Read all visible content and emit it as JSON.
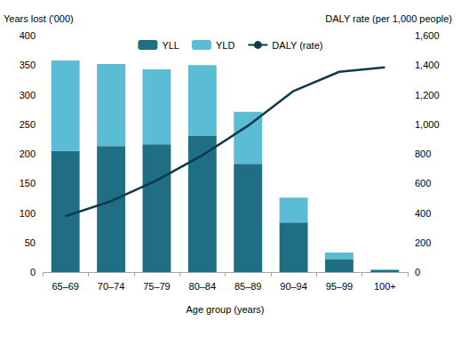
{
  "chart_data": {
    "type": "bar",
    "x_label": "Age group (years)",
    "y_label": "Years lost ('000)",
    "y2_label": "DALY rate (per 1,000 people)",
    "categories": [
      "65–69",
      "70–74",
      "75–79",
      "80–84",
      "85–89",
      "90–94",
      "95–99",
      "100+"
    ],
    "series": [
      {
        "name": "YLL",
        "type": "bar",
        "color": "#1f6e84",
        "values": [
          205,
          213,
          216,
          231,
          183,
          84,
          22,
          3
        ]
      },
      {
        "name": "YLD",
        "type": "bar",
        "color": "#5bbcd6",
        "values": [
          153,
          139,
          127,
          119,
          88,
          42,
          11,
          1.5
        ]
      },
      {
        "name": "DALY (rate)",
        "type": "line",
        "axis": "y2",
        "color": "#0d3a4a",
        "line_style": "solid",
        "marker": "none",
        "values": [
          378,
          480,
          620,
          790,
          990,
          1225,
          1355,
          1385
        ]
      }
    ],
    "stacked": true,
    "grid": false,
    "legend": "top",
    "ylim": [
      0,
      400
    ],
    "yticks": [
      0,
      50,
      100,
      150,
      200,
      250,
      300,
      350,
      400
    ],
    "y2lim": [
      0,
      1600
    ],
    "y2ticks": [
      0,
      200,
      400,
      600,
      800,
      {
        "value": 1000,
        "label": "1,000"
      },
      {
        "value": 1200,
        "label": "1,200"
      },
      {
        "value": 1400,
        "label": "1,400"
      },
      {
        "value": 1600,
        "label": "1,600"
      }
    ]
  }
}
